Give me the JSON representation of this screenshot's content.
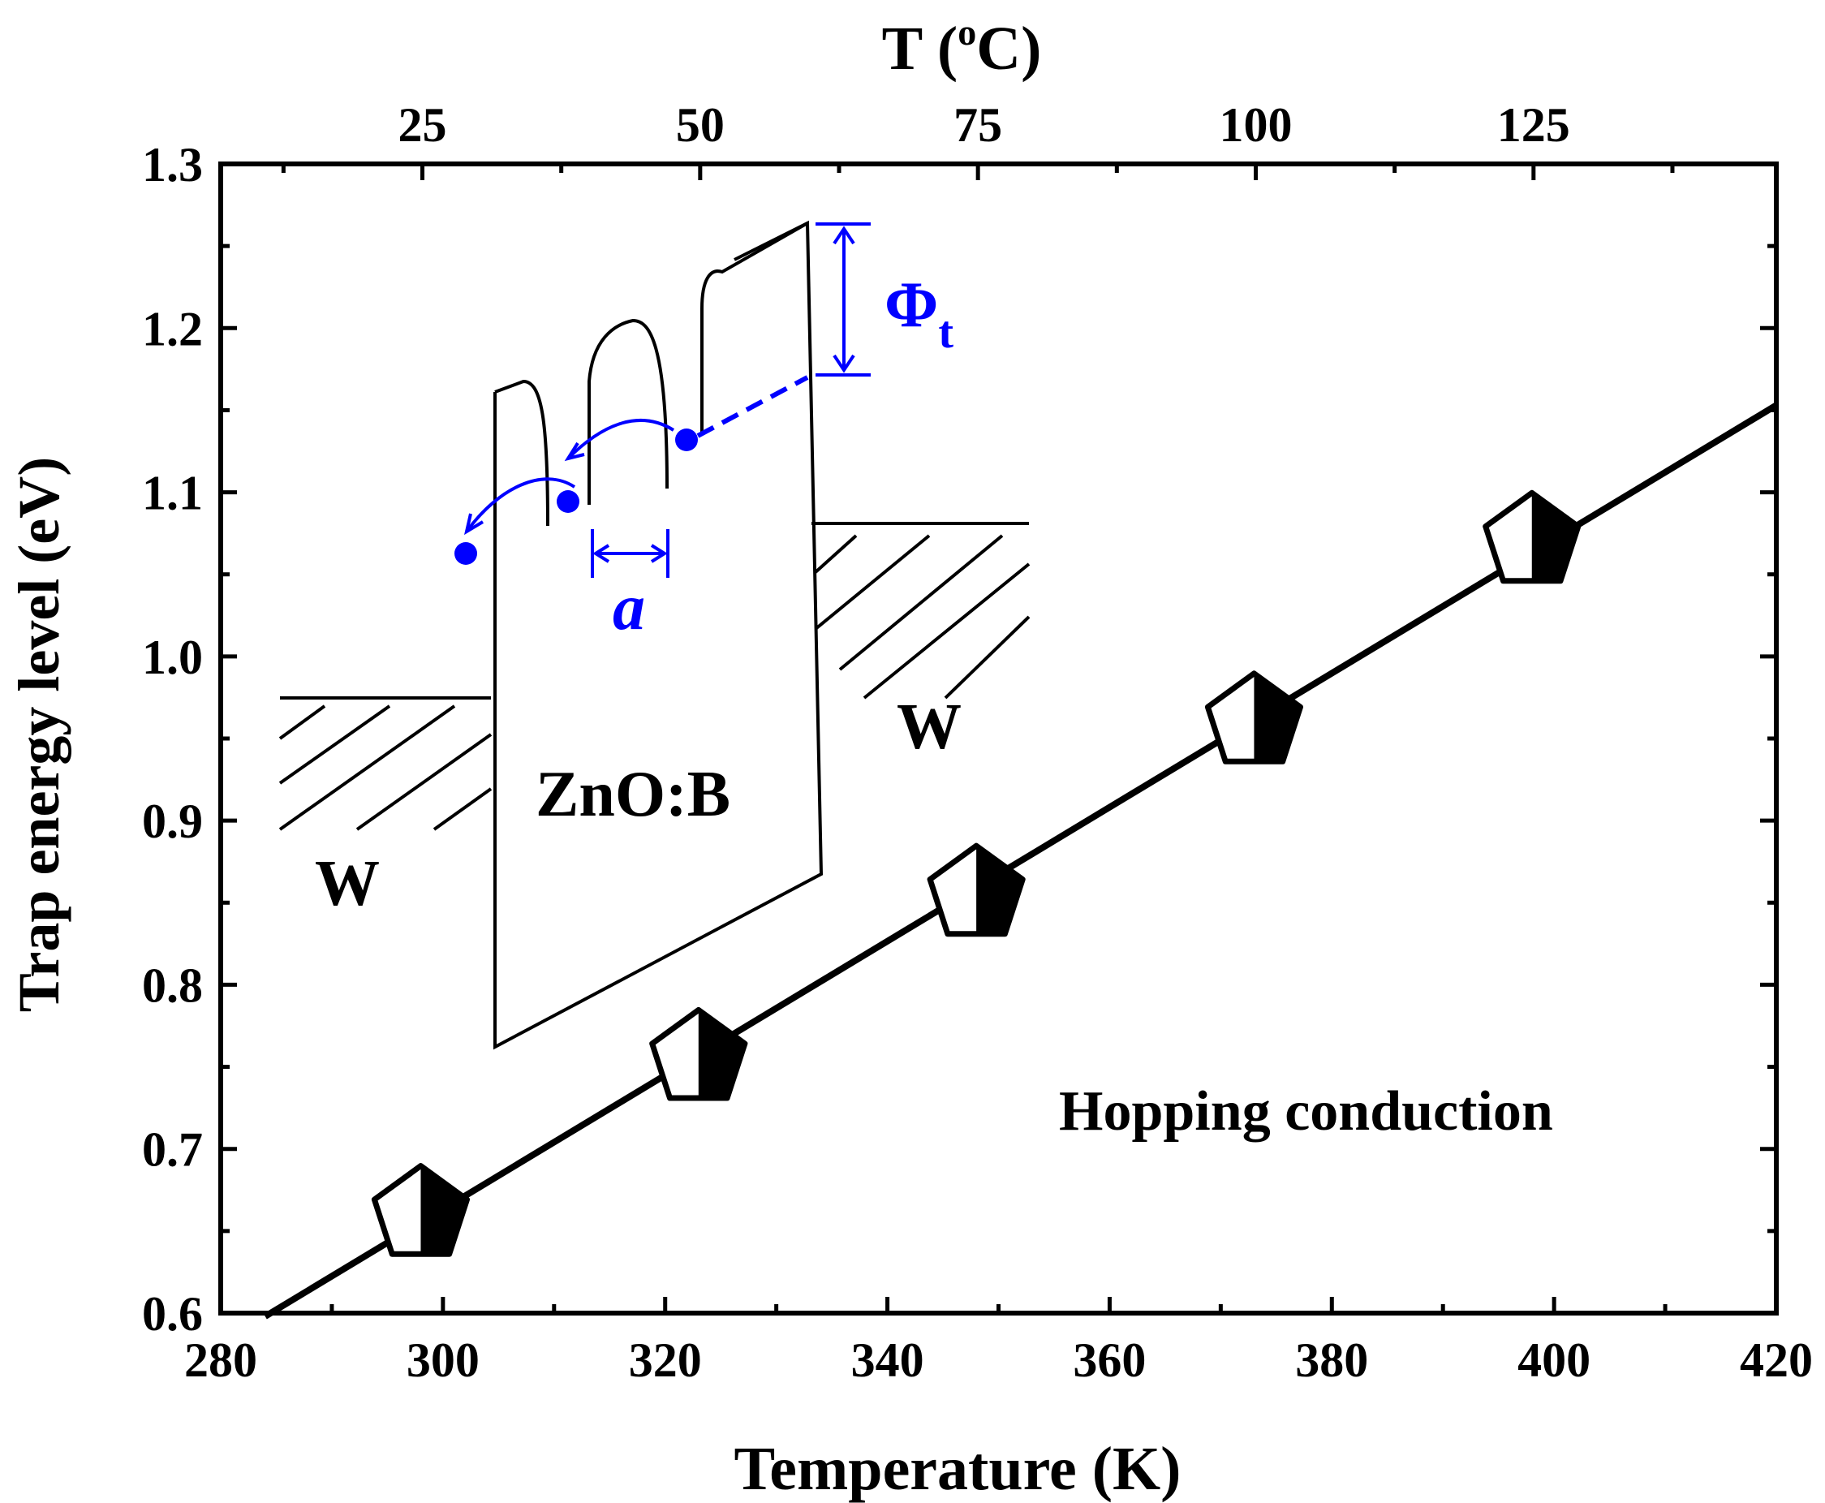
{
  "chart_data": {
    "type": "scatter",
    "xlabel": "Temperature (K)",
    "ylabel": "Trap energy level (eV)",
    "top_axis": {
      "prefix": "T (",
      "sup": "o",
      "suffix": "C)",
      "ticks": [
        "25",
        "50",
        "75",
        "100",
        "125"
      ],
      "tick_values_K": [
        298.15,
        323.15,
        348.15,
        373.15,
        398.15
      ]
    },
    "xlim": [
      280,
      420
    ],
    "ylim": [
      0.6,
      1.3
    ],
    "x_ticks": [
      "280",
      "300",
      "320",
      "340",
      "360",
      "380",
      "400",
      "420"
    ],
    "y_ticks": [
      "0.6",
      "0.7",
      "0.8",
      "0.9",
      "1.0",
      "1.1",
      "1.2",
      "1.3"
    ],
    "grid": false,
    "series": [
      {
        "marker": "half-filled pentagon",
        "points": [
          {
            "x": 298,
            "y": 0.66
          },
          {
            "x": 323,
            "y": 0.755
          },
          {
            "x": 348,
            "y": 0.855
          },
          {
            "x": 373,
            "y": 0.96
          },
          {
            "x": 398,
            "y": 1.07
          }
        ]
      }
    ],
    "fit_line": {
      "x": [
        284,
        420
      ],
      "y": [
        0.598,
        1.153
      ]
    },
    "annotation": "Hopping conduction",
    "inset": {
      "left_label": "W",
      "right_label": "W",
      "center_label": "ZnO:B",
      "barrier_symbol": "Φ",
      "barrier_subscript": "t",
      "distance_label": "a",
      "accent_color": "#0000ff"
    }
  }
}
